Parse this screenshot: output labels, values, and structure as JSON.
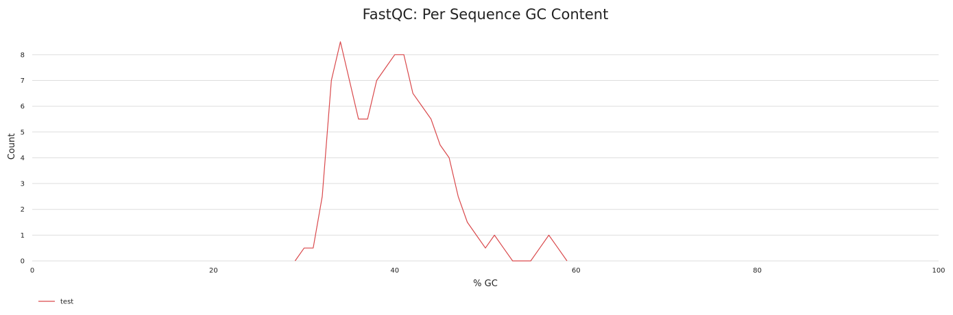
{
  "chart_data": {
    "type": "line",
    "title": "FastQC: Per Sequence GC Content",
    "xlabel": "% GC",
    "ylabel": "Count",
    "xlim": [
      0,
      100
    ],
    "ylim": [
      0,
      8.5
    ],
    "x_ticks": [
      0,
      20,
      40,
      60,
      80,
      100
    ],
    "y_ticks": [
      0,
      1,
      2,
      3,
      4,
      5,
      6,
      7,
      8
    ],
    "grid": "horizontal",
    "legend_position": "bottom-left",
    "series": [
      {
        "name": "test",
        "color": "#d9474a",
        "points": [
          [
            29,
            0
          ],
          [
            30,
            0.5
          ],
          [
            31,
            0.5
          ],
          [
            32,
            2.5
          ],
          [
            33,
            7
          ],
          [
            34,
            8.5
          ],
          [
            35,
            7
          ],
          [
            36,
            5.5
          ],
          [
            37,
            5.5
          ],
          [
            38,
            7
          ],
          [
            39,
            7.5
          ],
          [
            40,
            8
          ],
          [
            41,
            8
          ],
          [
            42,
            6.5
          ],
          [
            43,
            6
          ],
          [
            44,
            5.5
          ],
          [
            45,
            4.5
          ],
          [
            46,
            4
          ],
          [
            47,
            2.5
          ],
          [
            48,
            1.5
          ],
          [
            49,
            1
          ],
          [
            50,
            0.5
          ],
          [
            51,
            1
          ],
          [
            52,
            0.5
          ],
          [
            53,
            0
          ],
          [
            54,
            0
          ],
          [
            55,
            0
          ],
          [
            56,
            0.5
          ],
          [
            57,
            1
          ],
          [
            58,
            0.5
          ],
          [
            59,
            0
          ]
        ]
      }
    ]
  }
}
